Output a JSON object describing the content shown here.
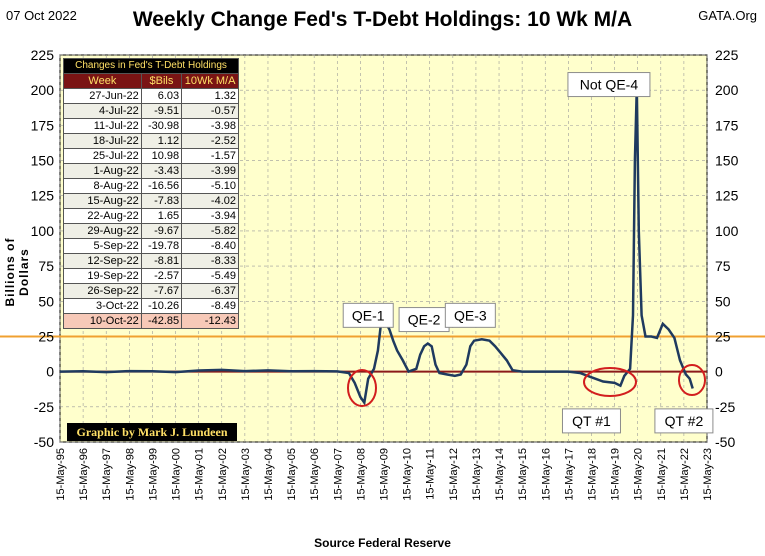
{
  "header": {
    "date": "07 Oct 2022",
    "title": "Weekly Change Fed's T-Debt Holdings: 10 Wk M/A",
    "brand": "GATA.Org"
  },
  "axis": {
    "ylabel": "Billions of Dollars",
    "xlabel": "Source Federal Reserve"
  },
  "credit": "Graphic by Mark J. Lundeen",
  "table": {
    "caption": "Changes in Fed's T-Debt Holdings",
    "headers": [
      "Week",
      "$Bils",
      "10Wk M/A"
    ],
    "rows": [
      [
        "27-Jun-22",
        "6.03",
        "1.32"
      ],
      [
        "4-Jul-22",
        "-9.51",
        "-0.57"
      ],
      [
        "11-Jul-22",
        "-30.98",
        "-3.98"
      ],
      [
        "18-Jul-22",
        "1.12",
        "-2.52"
      ],
      [
        "25-Jul-22",
        "10.98",
        "-1.57"
      ],
      [
        "1-Aug-22",
        "-3.43",
        "-3.99"
      ],
      [
        "8-Aug-22",
        "-16.56",
        "-5.10"
      ],
      [
        "15-Aug-22",
        "-7.83",
        "-4.02"
      ],
      [
        "22-Aug-22",
        "1.65",
        "-3.94"
      ],
      [
        "29-Aug-22",
        "-9.67",
        "-5.82"
      ],
      [
        "5-Sep-22",
        "-19.78",
        "-8.40"
      ],
      [
        "12-Sep-22",
        "-8.81",
        "-8.33"
      ],
      [
        "19-Sep-22",
        "-2.57",
        "-5.49"
      ],
      [
        "26-Sep-22",
        "-7.67",
        "-6.37"
      ],
      [
        "3-Oct-22",
        "-10.26",
        "-8.49"
      ],
      [
        "10-Oct-22",
        "-42.85",
        "-12.43"
      ]
    ]
  },
  "chart_data": {
    "type": "line",
    "title": "Weekly Change Fed's T-Debt Holdings: 10 Wk M/A",
    "xlabel": "Source Federal Reserve",
    "ylabel": "Billions of Dollars",
    "ylim": [
      -50,
      225
    ],
    "yticks": [
      -50,
      -25,
      0,
      25,
      50,
      75,
      100,
      125,
      150,
      175,
      200,
      225
    ],
    "xticks": [
      "15-May-95",
      "15-May-96",
      "15-May-97",
      "15-May-98",
      "15-May-99",
      "15-May-00",
      "15-May-01",
      "15-May-02",
      "15-May-03",
      "15-May-04",
      "15-May-05",
      "15-May-06",
      "15-May-07",
      "15-May-08",
      "15-May-09",
      "15-May-10",
      "15-May-11",
      "15-May-12",
      "15-May-13",
      "15-May-14",
      "15-May-15",
      "15-May-16",
      "15-May-17",
      "15-May-18",
      "15-May-19",
      "15-May-20",
      "15-May-21",
      "15-May-22",
      "15-May-23"
    ],
    "reference_lines": [
      {
        "y": 25,
        "color": "#f0a030"
      },
      {
        "y": 0,
        "color": "#8b1a1a"
      }
    ],
    "series": [
      {
        "color": "#1f3a5f",
        "points": [
          [
            "1995-05-15",
            0
          ],
          [
            "1996-05-15",
            0.3
          ],
          [
            "1997-05-15",
            -0.3
          ],
          [
            "1998-05-15",
            0.4
          ],
          [
            "1999-05-15",
            0.3
          ],
          [
            "2000-05-15",
            -0.3
          ],
          [
            "2001-05-15",
            0.8
          ],
          [
            "2002-05-15",
            1.2
          ],
          [
            "2003-05-15",
            0.4
          ],
          [
            "2004-05-15",
            0.9
          ],
          [
            "2005-05-15",
            0.3
          ],
          [
            "2006-05-15",
            0.4
          ],
          [
            "2007-05-15",
            0.2
          ],
          [
            "2007-11-15",
            -1
          ],
          [
            "2008-02-15",
            -8
          ],
          [
            "2008-05-15",
            -18
          ],
          [
            "2008-07-15",
            -22
          ],
          [
            "2008-09-15",
            -5
          ],
          [
            "2008-12-15",
            2
          ],
          [
            "2009-02-15",
            15
          ],
          [
            "2009-04-15",
            38
          ],
          [
            "2009-05-15",
            48
          ],
          [
            "2009-06-15",
            35
          ],
          [
            "2009-08-15",
            30
          ],
          [
            "2009-10-15",
            22
          ],
          [
            "2009-12-15",
            15
          ],
          [
            "2010-03-15",
            8
          ],
          [
            "2010-06-15",
            0
          ],
          [
            "2010-10-15",
            2
          ],
          [
            "2010-12-15",
            12
          ],
          [
            "2011-02-15",
            18
          ],
          [
            "2011-04-15",
            20
          ],
          [
            "2011-06-15",
            18
          ],
          [
            "2011-08-15",
            5
          ],
          [
            "2011-10-15",
            -1
          ],
          [
            "2012-02-15",
            -2
          ],
          [
            "2012-06-15",
            -3
          ],
          [
            "2012-09-15",
            -2
          ],
          [
            "2012-12-15",
            5
          ],
          [
            "2013-02-15",
            18
          ],
          [
            "2013-04-15",
            22
          ],
          [
            "2013-08-15",
            23
          ],
          [
            "2013-12-15",
            22
          ],
          [
            "2014-03-15",
            18
          ],
          [
            "2014-06-15",
            13
          ],
          [
            "2014-09-15",
            8
          ],
          [
            "2014-12-15",
            1
          ],
          [
            "2015-05-15",
            0
          ],
          [
            "2016-05-15",
            0
          ],
          [
            "2017-05-15",
            0
          ],
          [
            "2017-11-15",
            -1
          ],
          [
            "2018-05-15",
            -4
          ],
          [
            "2018-11-15",
            -7
          ],
          [
            "2019-05-15",
            -8
          ],
          [
            "2019-08-15",
            -10
          ],
          [
            "2019-10-15",
            -3
          ],
          [
            "2020-01-15",
            2
          ],
          [
            "2020-03-01",
            40
          ],
          [
            "2020-04-01",
            150
          ],
          [
            "2020-05-01",
            202
          ],
          [
            "2020-06-01",
            100
          ],
          [
            "2020-07-15",
            40
          ],
          [
            "2020-09-15",
            25
          ],
          [
            "2020-12-15",
            25
          ],
          [
            "2021-03-15",
            24
          ],
          [
            "2021-06-15",
            34
          ],
          [
            "2021-09-15",
            30
          ],
          [
            "2021-12-15",
            24
          ],
          [
            "2022-03-15",
            8
          ],
          [
            "2022-06-15",
            -2
          ],
          [
            "2022-08-15",
            -5
          ],
          [
            "2022-10-01",
            -12
          ]
        ]
      }
    ],
    "annotations": [
      {
        "text": "QE-1",
        "x": "2008-09-15",
        "y": 40
      },
      {
        "text": "QE-2",
        "x": "2011-02-15",
        "y": 37
      },
      {
        "text": "QE-3",
        "x": "2013-02-15",
        "y": 40
      },
      {
        "text": "Not QE-4",
        "x": "2019-02-15",
        "y": 204
      },
      {
        "text": "QT #1",
        "x": "2018-05-15",
        "y": -35
      },
      {
        "text": "QT #2",
        "x": "2022-05-15",
        "y": -35
      }
    ]
  }
}
